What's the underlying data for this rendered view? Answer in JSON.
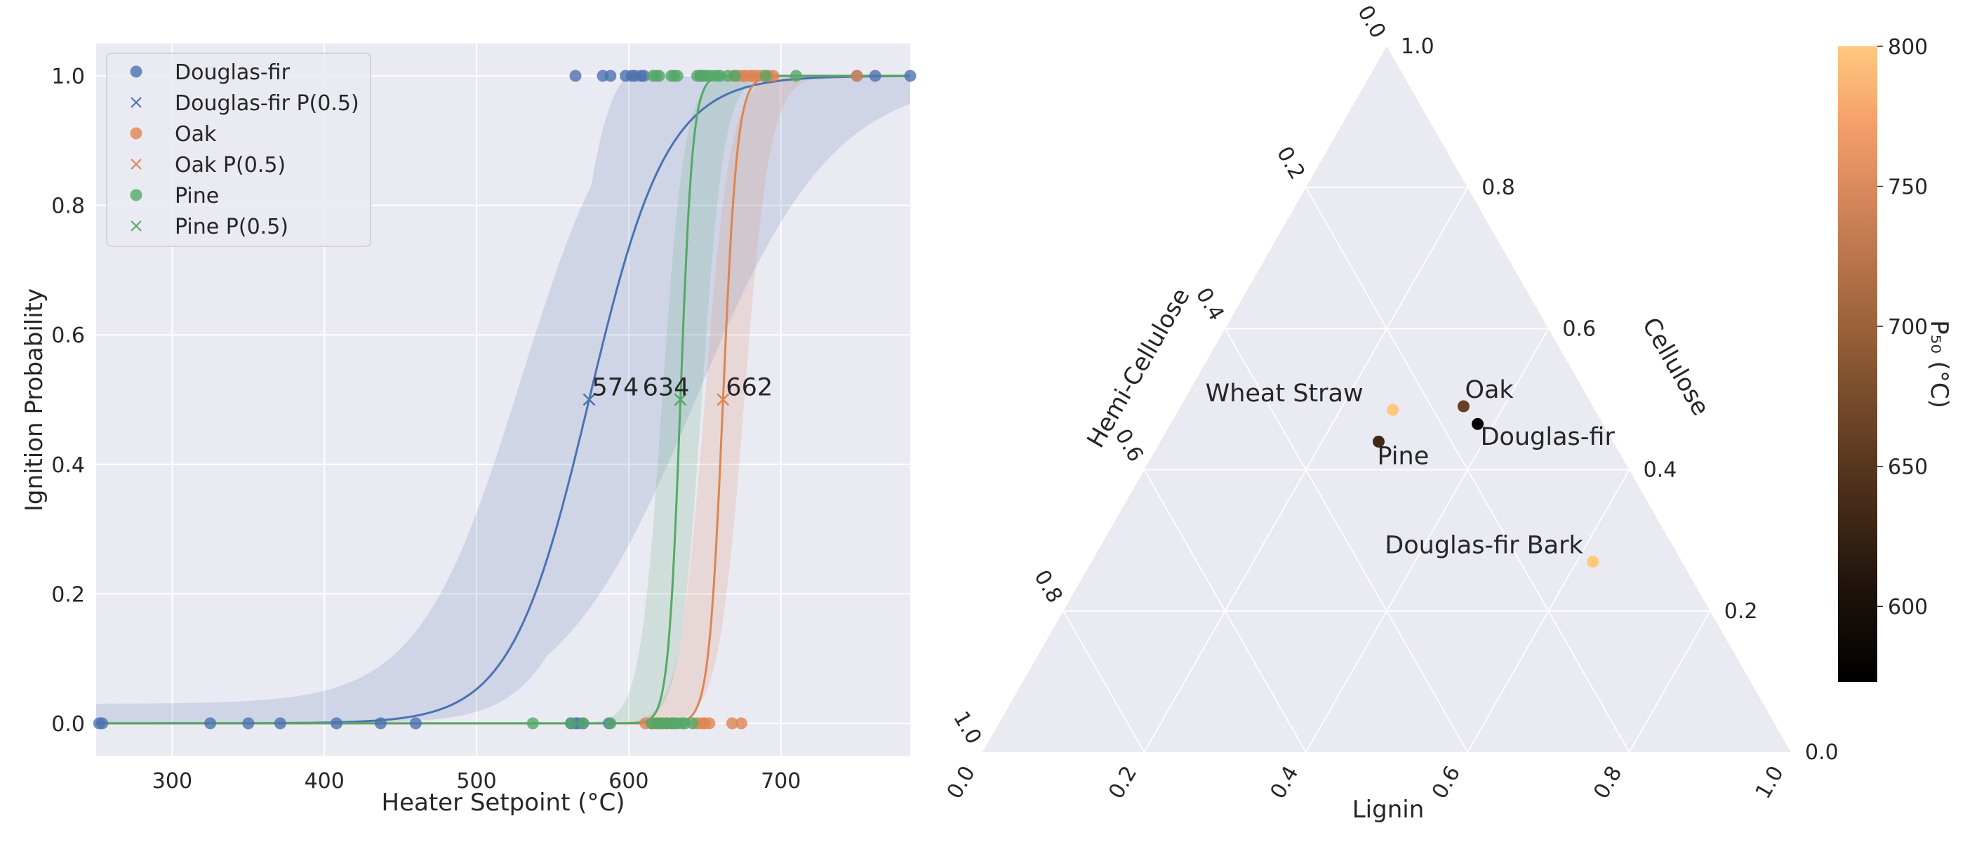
{
  "chart_data": [
    {
      "type": "scatter",
      "xlabel": "Heater Setpoint (°C)",
      "ylabel": "Ignition Probability",
      "xlim": [
        250,
        785
      ],
      "ylim": [
        -0.05,
        1.05
      ],
      "xticks": [
        300,
        400,
        500,
        600,
        700
      ],
      "yticks": [
        0.0,
        0.2,
        0.4,
        0.6,
        0.8,
        1.0
      ],
      "xtick_labels": [
        "300",
        "400",
        "500",
        "600",
        "700"
      ],
      "ytick_labels": [
        "0.0",
        "0.2",
        "0.4",
        "0.6",
        "0.8",
        "1.0"
      ],
      "grid": true,
      "legend_position": "top-left",
      "series": [
        {
          "name": "Douglas-fir",
          "p50_label_name": "Douglas-fir P(0.5)",
          "color": "#4c72b0",
          "p50": 574,
          "p50_label": "574",
          "ignited_x": [
            565,
            583,
            588,
            598,
            602,
            604,
            608,
            610,
            647,
            750,
            762,
            785
          ],
          "not_ignited_x": [
            252,
            254,
            325,
            350,
            371,
            408,
            437,
            460,
            562,
            565,
            567,
            570,
            587
          ]
        },
        {
          "name": "Oak",
          "p50_label_name": "Oak P(0.5)",
          "color": "#dd8452",
          "p50": 662,
          "p50_label": "662",
          "ignited_x": [
            669,
            672,
            675,
            677,
            680,
            682,
            685,
            688,
            692,
            695,
            750
          ],
          "not_ignited_x": [
            611,
            615,
            618,
            622,
            625,
            628,
            645,
            648,
            650,
            653,
            668,
            674
          ]
        },
        {
          "name": "Pine",
          "p50_label_name": "Pine P(0.5)",
          "color": "#55a868",
          "p50": 634,
          "p50_label": "634",
          "ignited_x": [
            616,
            618,
            620,
            628,
            630,
            632,
            645,
            648,
            650,
            652,
            655,
            658,
            660,
            665,
            670,
            690,
            710
          ],
          "not_ignited_x": [
            537,
            562,
            570,
            588,
            615,
            618,
            620,
            622,
            625,
            628,
            630,
            632,
            635,
            637,
            642
          ]
        }
      ]
    },
    {
      "type": "ternary-scatter",
      "axes": {
        "bottom": "Lignin",
        "right": "Cellulose",
        "left": "Hemi-Cellulose"
      },
      "tick_labels": [
        "0.0",
        "0.2",
        "0.4",
        "0.6",
        "0.8",
        "1.0"
      ],
      "colorbar": {
        "label": "P₅₀ (°C)",
        "range": [
          573,
          800
        ],
        "ticks": [
          "600",
          "650",
          "700",
          "750",
          "800"
        ],
        "tick_values": [
          600,
          650,
          700,
          750,
          800
        ]
      },
      "points": [
        {
          "name": "Wheat Straw",
          "lignin": 0.265,
          "cellulose": 0.485,
          "hemicellulose": 0.25,
          "p50": 800
        },
        {
          "name": "Oak",
          "lignin": 0.35,
          "cellulose": 0.49,
          "hemicellulose": 0.16,
          "p50": 662
        },
        {
          "name": "Douglas-fir",
          "lignin": 0.38,
          "cellulose": 0.465,
          "hemicellulose": 0.155,
          "p50": 574
        },
        {
          "name": "Pine",
          "lignin": 0.27,
          "cellulose": 0.44,
          "hemicellulose": 0.29,
          "p50": 634
        },
        {
          "name": "Douglas-fir Bark",
          "lignin": 0.62,
          "cellulose": 0.27,
          "hemicellulose": 0.11,
          "p50": 800
        }
      ]
    }
  ]
}
